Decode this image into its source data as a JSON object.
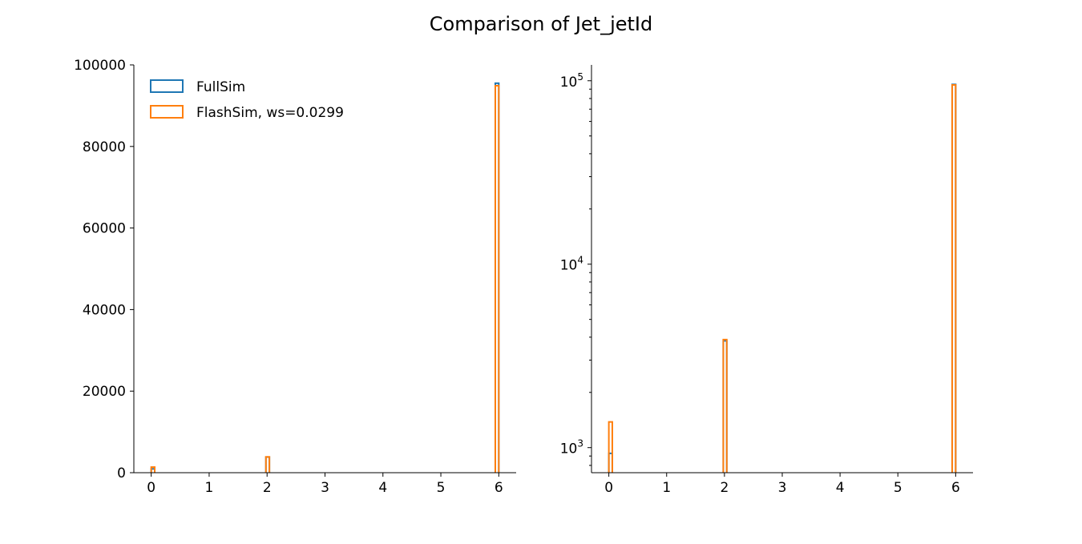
{
  "chart_data": [
    {
      "type": "bar",
      "histtype": "step",
      "title": "Comparison of Jet_jetId",
      "yscale": "linear",
      "xlim": [
        -0.3,
        6.3
      ],
      "ylim": [
        0,
        100000
      ],
      "xticks": [
        "0",
        "1",
        "2",
        "3",
        "4",
        "5",
        "6"
      ],
      "yticks": [
        "0",
        "20000",
        "40000",
        "60000",
        "80000",
        "100000"
      ],
      "bin_width": 0.06,
      "legend_placement": "upper-left",
      "series": [
        {
          "name": "FullSim",
          "color": "#1f77b4",
          "bins": [
            {
              "x0": 0.0,
              "value": 930
            },
            {
              "x0": 1.98,
              "value": 3820
            },
            {
              "x0": 5.94,
              "value": 95500
            }
          ]
        },
        {
          "name": "FlashSim, ws=0.0299",
          "color": "#ff7f0e",
          "bins": [
            {
              "x0": 0.0,
              "value": 1380
            },
            {
              "x0": 1.98,
              "value": 3880
            },
            {
              "x0": 5.94,
              "value": 94900
            }
          ]
        }
      ]
    },
    {
      "type": "bar",
      "histtype": "step",
      "yscale": "log",
      "xlim": [
        -0.3,
        6.3
      ],
      "ylim": [
        730,
        122000
      ],
      "xticks": [
        "0",
        "1",
        "2",
        "3",
        "4",
        "5",
        "6"
      ],
      "yticks": [
        {
          "base": "10",
          "exp": "3",
          "value": 1000
        },
        {
          "base": "10",
          "exp": "4",
          "value": 10000
        },
        {
          "base": "10",
          "exp": "5",
          "value": 100000
        }
      ],
      "bin_width": 0.06,
      "series": [
        {
          "color": "#1f77b4",
          "bins": [
            {
              "x0": 0.0,
              "value": 930
            },
            {
              "x0": 1.98,
              "value": 3820
            },
            {
              "x0": 5.94,
              "value": 95500
            }
          ]
        },
        {
          "color": "#ff7f0e",
          "bins": [
            {
              "x0": 0.0,
              "value": 1380
            },
            {
              "x0": 1.98,
              "value": 3880
            },
            {
              "x0": 5.94,
              "value": 94900
            }
          ]
        }
      ]
    }
  ]
}
